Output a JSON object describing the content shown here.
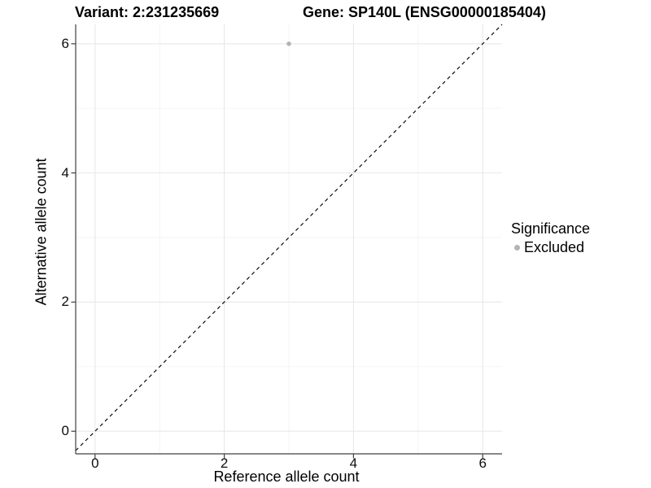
{
  "chart_data": {
    "type": "scatter",
    "title_left": "Variant: 2:231235669",
    "title_right": "Gene: SP140L (ENSG00000185404)",
    "xlabel": "Reference allele count",
    "ylabel": "Alternative allele count",
    "xlim": [
      -0.3,
      6.3
    ],
    "ylim": [
      -0.35,
      6.3
    ],
    "xticks": [
      0,
      2,
      4,
      6
    ],
    "yticks": [
      0,
      2,
      4,
      6
    ],
    "x_minor": [
      1,
      3,
      5
    ],
    "y_minor": [
      1,
      3,
      5
    ],
    "grid": true,
    "series": [
      {
        "name": "Excluded",
        "color": "#b4b4b4",
        "points": [
          [
            3,
            6
          ]
        ]
      }
    ],
    "reference_line": {
      "style": "dashed",
      "slope": 1,
      "intercept": 0,
      "color": "#000000"
    },
    "legend": {
      "title": "Significance",
      "position": "right",
      "entries": [
        {
          "label": "Excluded",
          "color": "#b4b4b4",
          "marker": "circle"
        }
      ]
    }
  },
  "colors": {
    "background": "#ffffff",
    "grid_major": "#e8e8e8",
    "grid_minor": "#f3f3f3",
    "axis": "#404040",
    "tick_text": "#0d0d0d",
    "text": "#000000"
  }
}
